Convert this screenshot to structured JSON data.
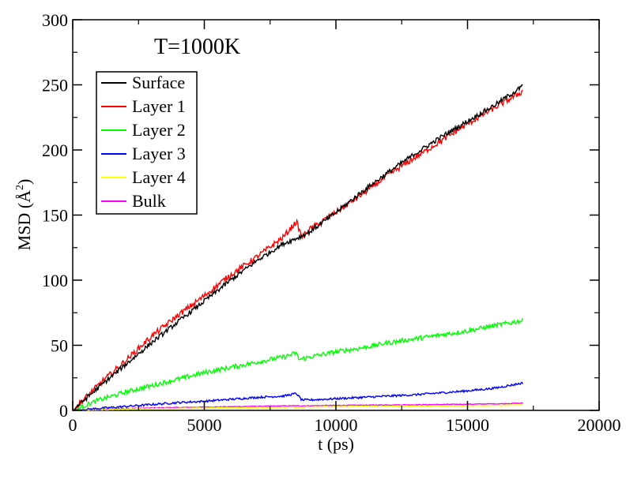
{
  "chart_data": {
    "type": "line",
    "title": "T=1000K",
    "xlabel": "t (ps)",
    "ylabel_main": "MSD (",
    "ylabel_unit": "Å",
    "ylabel_exp": "2",
    "ylabel_close": ")",
    "xlim": [
      0,
      20000
    ],
    "ylim": [
      0,
      300
    ],
    "x_ticks": [
      0,
      5000,
      10000,
      15000,
      20000
    ],
    "y_ticks": [
      0,
      50,
      100,
      150,
      200,
      250,
      300
    ],
    "x_tick_labels": [
      "0",
      "5000",
      "10000",
      "15000",
      "20000"
    ],
    "y_tick_labels": [
      "0",
      "50",
      "100",
      "150",
      "200",
      "250",
      "300"
    ],
    "grid": false,
    "legend_position": "top-left",
    "series": [
      {
        "name": "Surface",
        "color": "#000000",
        "noise": 1.8,
        "points": [
          [
            0,
            0
          ],
          [
            1000,
            18
          ],
          [
            2000,
            35
          ],
          [
            3000,
            52
          ],
          [
            4000,
            68
          ],
          [
            5000,
            84
          ],
          [
            6000,
            100
          ],
          [
            7000,
            115
          ],
          [
            8000,
            128
          ],
          [
            8600,
            133
          ],
          [
            9000,
            137
          ],
          [
            10000,
            152
          ],
          [
            11000,
            168
          ],
          [
            12000,
            183
          ],
          [
            13000,
            197
          ],
          [
            14000,
            210
          ],
          [
            15000,
            222
          ],
          [
            16000,
            234
          ],
          [
            17100,
            249
          ]
        ]
      },
      {
        "name": "Layer 1",
        "color": "#ff0000",
        "noise": 2.2,
        "points": [
          [
            0,
            0
          ],
          [
            1000,
            20
          ],
          [
            2000,
            38
          ],
          [
            3000,
            57
          ],
          [
            4000,
            73
          ],
          [
            5000,
            88
          ],
          [
            5800,
            101
          ],
          [
            6000,
            104
          ],
          [
            7000,
            118
          ],
          [
            8000,
            133
          ],
          [
            8500,
            145
          ],
          [
            8700,
            133
          ],
          [
            9000,
            139
          ],
          [
            10000,
            152
          ],
          [
            11000,
            166
          ],
          [
            12000,
            181
          ],
          [
            13000,
            194
          ],
          [
            14000,
            207
          ],
          [
            15000,
            220
          ],
          [
            16000,
            232
          ],
          [
            17100,
            245
          ]
        ]
      },
      {
        "name": "Layer 2",
        "color": "#00ff00",
        "noise": 1.8,
        "points": [
          [
            0,
            0
          ],
          [
            1000,
            8
          ],
          [
            2000,
            14
          ],
          [
            3000,
            19
          ],
          [
            4000,
            24
          ],
          [
            5000,
            29
          ],
          [
            6000,
            33
          ],
          [
            7000,
            37
          ],
          [
            8000,
            41
          ],
          [
            8500,
            44
          ],
          [
            8600,
            39
          ],
          [
            9000,
            41
          ],
          [
            10000,
            45
          ],
          [
            11000,
            48
          ],
          [
            12000,
            52
          ],
          [
            13000,
            55
          ],
          [
            14000,
            58
          ],
          [
            15000,
            61
          ],
          [
            16000,
            65
          ],
          [
            17100,
            69
          ]
        ]
      },
      {
        "name": "Layer 3",
        "color": "#0000ff",
        "noise": 0.8,
        "points": [
          [
            0,
            0
          ],
          [
            1000,
            1.5
          ],
          [
            2000,
            3
          ],
          [
            3000,
            4.5
          ],
          [
            4000,
            6
          ],
          [
            5000,
            7
          ],
          [
            6000,
            8.5
          ],
          [
            7000,
            10
          ],
          [
            8000,
            11
          ],
          [
            8500,
            13
          ],
          [
            8700,
            8
          ],
          [
            9000,
            8
          ],
          [
            10000,
            9
          ],
          [
            11000,
            10
          ],
          [
            12000,
            11
          ],
          [
            13000,
            12
          ],
          [
            14000,
            13.5
          ],
          [
            15000,
            15
          ],
          [
            16000,
            17
          ],
          [
            17100,
            21
          ]
        ]
      },
      {
        "name": "Layer 4",
        "color": "#ffff00",
        "noise": 0.4,
        "points": [
          [
            0,
            0
          ],
          [
            2000,
            1
          ],
          [
            4000,
            1.5
          ],
          [
            6000,
            2
          ],
          [
            8000,
            2.5
          ],
          [
            10000,
            3
          ],
          [
            12000,
            3.2
          ],
          [
            14000,
            3.5
          ],
          [
            16000,
            3.8
          ],
          [
            17100,
            4.2
          ]
        ]
      },
      {
        "name": "Bulk",
        "color": "#ff00ff",
        "noise": 0.3,
        "points": [
          [
            0,
            0
          ],
          [
            2000,
            1.5
          ],
          [
            4000,
            2.2
          ],
          [
            6000,
            2.8
          ],
          [
            8000,
            3.4
          ],
          [
            10000,
            3.8
          ],
          [
            12000,
            4.2
          ],
          [
            14000,
            4.5
          ],
          [
            16000,
            5
          ],
          [
            17100,
            5.5
          ]
        ]
      }
    ]
  }
}
